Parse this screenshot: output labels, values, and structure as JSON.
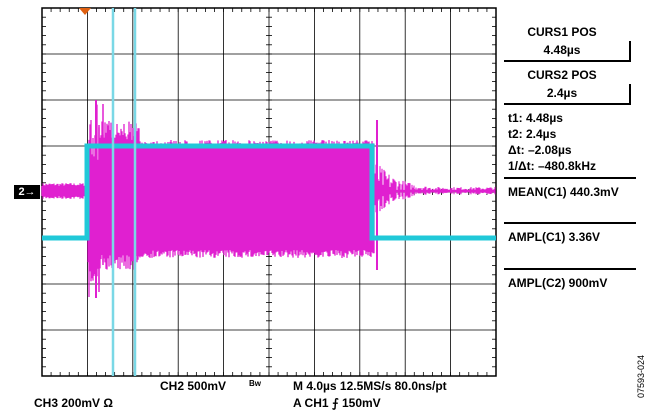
{
  "scope": {
    "bottom_left": {
      "ch3": "CH3  200mV  Ω"
    },
    "bottom_middle": {
      "ch2": "CH2  500mV",
      "bw_marker": "Bw"
    },
    "bottom_right": {
      "timebase": "M 4.0µs 12.5MS/s    80.0ns/pt",
      "trigger": "A  CH1  ⨍  150mV"
    },
    "channel_marker": "2→",
    "figure_id": "07593-024",
    "side_panel": {
      "curs1_title": "CURS1 POS",
      "curs1_value": "4.48µs",
      "curs2_title": "CURS2 POS",
      "curs2_value": "2.4µs",
      "t1": "t1: 4.48µs",
      "t2": "t2: 2.4µs",
      "dt": "Δt: –2.08µs",
      "inv_dt": "1/Δt: –480.8kHz",
      "mean_c1": "MEAN(C1)  440.3mV",
      "ampl_c1": "AMPL(C1)  3.36V",
      "ampl_c2": "AMPL(C2)  900mV"
    },
    "colors": {
      "magenta": "#e020d0",
      "cyan": "#20c8d8",
      "grid": "#000000",
      "trigger_marker": "#e06010"
    }
  }
}
